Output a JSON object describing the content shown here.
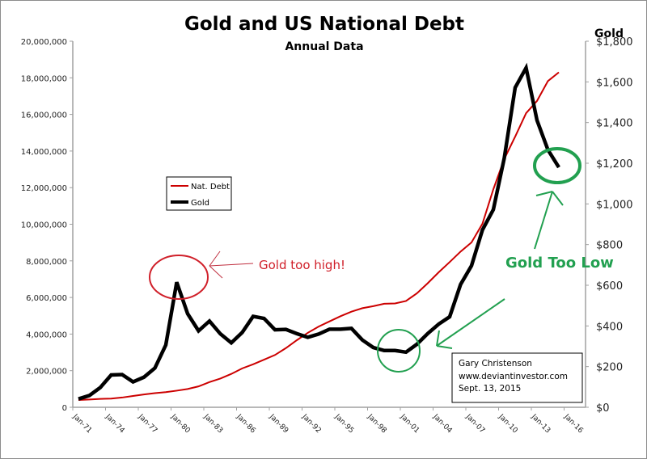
{
  "chart_data": {
    "type": "line",
    "title": "Gold and US National Debt",
    "subtitle": "Annual Data",
    "y2label": "Gold",
    "x_ticks": [
      "Jan-71",
      "Jan-74",
      "Jan-77",
      "Jan-80",
      "Jan-83",
      "Jan-86",
      "Jan-89",
      "Jan-92",
      "Jan-95",
      "Jan-98",
      "Jan-01",
      "Jan-04",
      "Jan-07",
      "Jan-10",
      "Jan-13",
      "Jan-16"
    ],
    "y_ticks": [
      "0",
      "2,000,000",
      "4,000,000",
      "6,000,000",
      "8,000,000",
      "10,000,000",
      "12,000,000",
      "14,000,000",
      "16,000,000",
      "18,000,000",
      "20,000,000"
    ],
    "y2_ticks": [
      "$0",
      "$200",
      "$400",
      "$600",
      "$800",
      "$1,000",
      "$1,200",
      "$1,400",
      "$1,600",
      "$1,800"
    ],
    "ylim": [
      0,
      20000000
    ],
    "y2lim": [
      0,
      1800
    ],
    "legend_position": "middle-left",
    "x": [
      1971,
      1972,
      1973,
      1974,
      1975,
      1976,
      1977,
      1978,
      1979,
      1980,
      1981,
      1982,
      1983,
      1984,
      1985,
      1986,
      1987,
      1988,
      1989,
      1990,
      1991,
      1992,
      1993,
      1994,
      1995,
      1996,
      1997,
      1998,
      1999,
      2000,
      2001,
      2002,
      2003,
      2004,
      2005,
      2006,
      2007,
      2008,
      2009,
      2010,
      2011,
      2012,
      2013,
      2014,
      2015
    ],
    "series": [
      {
        "name": "Nat. Debt",
        "axis": "left",
        "color": "#cc0000",
        "values": [
          398000,
          427000,
          458000,
          475000,
          533000,
          620000,
          699000,
          772000,
          827000,
          908000,
          998000,
          1142000,
          1377000,
          1572000,
          1823000,
          2125000,
          2350000,
          2602000,
          2857000,
          3233000,
          3665000,
          4065000,
          4411000,
          4693000,
          4974000,
          5225000,
          5413000,
          5526000,
          5656000,
          5674000,
          5807000,
          6228000,
          6783000,
          7379000,
          7933000,
          8507000,
          9008000,
          10025000,
          11910000,
          13562000,
          14790000,
          16066000,
          16738000,
          17824000,
          18300000
        ]
      },
      {
        "name": "Gold",
        "axis": "right",
        "color": "#000000",
        "values": [
          41,
          58,
          97,
          159,
          161,
          125,
          148,
          193,
          306,
          615,
          460,
          376,
          424,
          361,
          317,
          368,
          447,
          437,
          381,
          383,
          362,
          344,
          360,
          384,
          384,
          388,
          331,
          294,
          279,
          279,
          271,
          310,
          363,
          409,
          445,
          604,
          696,
          872,
          972,
          1225,
          1572,
          1669,
          1411,
          1266,
          1180
        ]
      }
    ],
    "annotations": {
      "high": "Gold too high!",
      "low": "Gold Too Low",
      "credit": [
        "Gary Christenson",
        "www.deviantinvestor.com",
        "Sept. 13, 2015"
      ]
    }
  }
}
